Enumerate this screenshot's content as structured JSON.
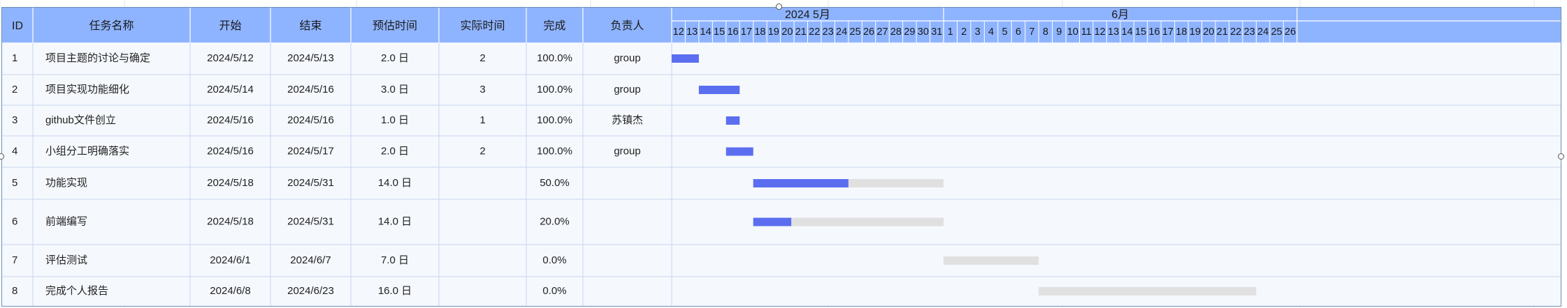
{
  "gantt": {
    "columns": [
      "ID",
      "任务名称",
      "开始",
      "结束",
      "预估时间",
      "实际时间",
      "完成",
      "负责人"
    ],
    "months": [
      {
        "label": "2024 5月",
        "days": [
          "12",
          "13",
          "14",
          "15",
          "16",
          "17",
          "18",
          "19",
          "20",
          "21",
          "22",
          "23",
          "24",
          "25",
          "26",
          "27",
          "28",
          "29",
          "30",
          "31"
        ]
      },
      {
        "label": "6月",
        "days": [
          "1",
          "2",
          "3",
          "4",
          "5",
          "6",
          "7",
          "8",
          "9",
          "10",
          "11",
          "12",
          "13",
          "14",
          "15",
          "16",
          "17",
          "18",
          "19",
          "20",
          "21",
          "22",
          "23",
          "24",
          "25",
          "26"
        ]
      }
    ],
    "tasks": [
      {
        "id": "1",
        "name": "项目主题的讨论与确定",
        "start": "2024/5/12",
        "end": "2024/5/13",
        "estimate": "2.0 日",
        "actual": "2",
        "progress": "100.0%",
        "owner": "group"
      },
      {
        "id": "2",
        "name": "项目实现功能细化",
        "start": "2024/5/14",
        "end": "2024/5/16",
        "estimate": "3.0 日",
        "actual": "3",
        "progress": "100.0%",
        "owner": "group"
      },
      {
        "id": "3",
        "name": "github文件创立",
        "start": "2024/5/16",
        "end": "2024/5/16",
        "estimate": "1.0 日",
        "actual": "1",
        "progress": "100.0%",
        "owner": "苏镇杰"
      },
      {
        "id": "4",
        "name": "小组分工明确落实",
        "start": "2024/5/16",
        "end": "2024/5/17",
        "estimate": "2.0 日",
        "actual": "2",
        "progress": "100.0%",
        "owner": "group"
      },
      {
        "id": "5",
        "name": "功能实现",
        "start": "2024/5/18",
        "end": "2024/5/31",
        "estimate": "14.0 日",
        "actual": "",
        "progress": "50.0%",
        "owner": ""
      },
      {
        "id": "6",
        "name": "前端编写",
        "start": "2024/5/18",
        "end": "2024/5/31",
        "estimate": "14.0 日",
        "actual": "",
        "progress": "20.0%",
        "owner": ""
      },
      {
        "id": "7",
        "name": "评估测试",
        "start": "2024/6/1",
        "end": "2024/6/7",
        "estimate": "7.0 日",
        "actual": "",
        "progress": "0.0%",
        "owner": ""
      },
      {
        "id": "8",
        "name": "完成个人报告",
        "start": "2024/6/8",
        "end": "2024/6/23",
        "estimate": "16.0 日",
        "actual": "",
        "progress": "0.0%",
        "owner": ""
      }
    ],
    "colors": {
      "header": "#8fb4ff",
      "bar_done": "#5b6ef0",
      "bar_remaining": "#e0e0e0",
      "body": "#f5f8fd",
      "grid": "#c9d6ef"
    }
  },
  "chart_data": {
    "type": "bar",
    "subtype": "gantt",
    "categories": [
      "项目主题的讨论与确定",
      "项目实现功能细化",
      "github文件创立",
      "小组分工明确落实",
      "功能实现",
      "前端编写",
      "评估测试",
      "完成个人报告"
    ],
    "series": [
      {
        "start": [
          "2024-05-12",
          "2024-05-14",
          "2024-05-16",
          "2024-05-16",
          "2024-05-18",
          "2024-05-18",
          "2024-06-01",
          "2024-06-08"
        ],
        "end": [
          "2024-05-13",
          "2024-05-16",
          "2024-05-16",
          "2024-05-17",
          "2024-05-31",
          "2024-05-31",
          "2024-06-07",
          "2024-06-23"
        ],
        "progress": [
          1.0,
          1.0,
          1.0,
          1.0,
          0.5,
          0.2,
          0.0,
          0.0
        ]
      }
    ],
    "xlim": [
      "2024-05-12",
      "2024-06-26"
    ],
    "grid": true,
    "legend": "none"
  }
}
